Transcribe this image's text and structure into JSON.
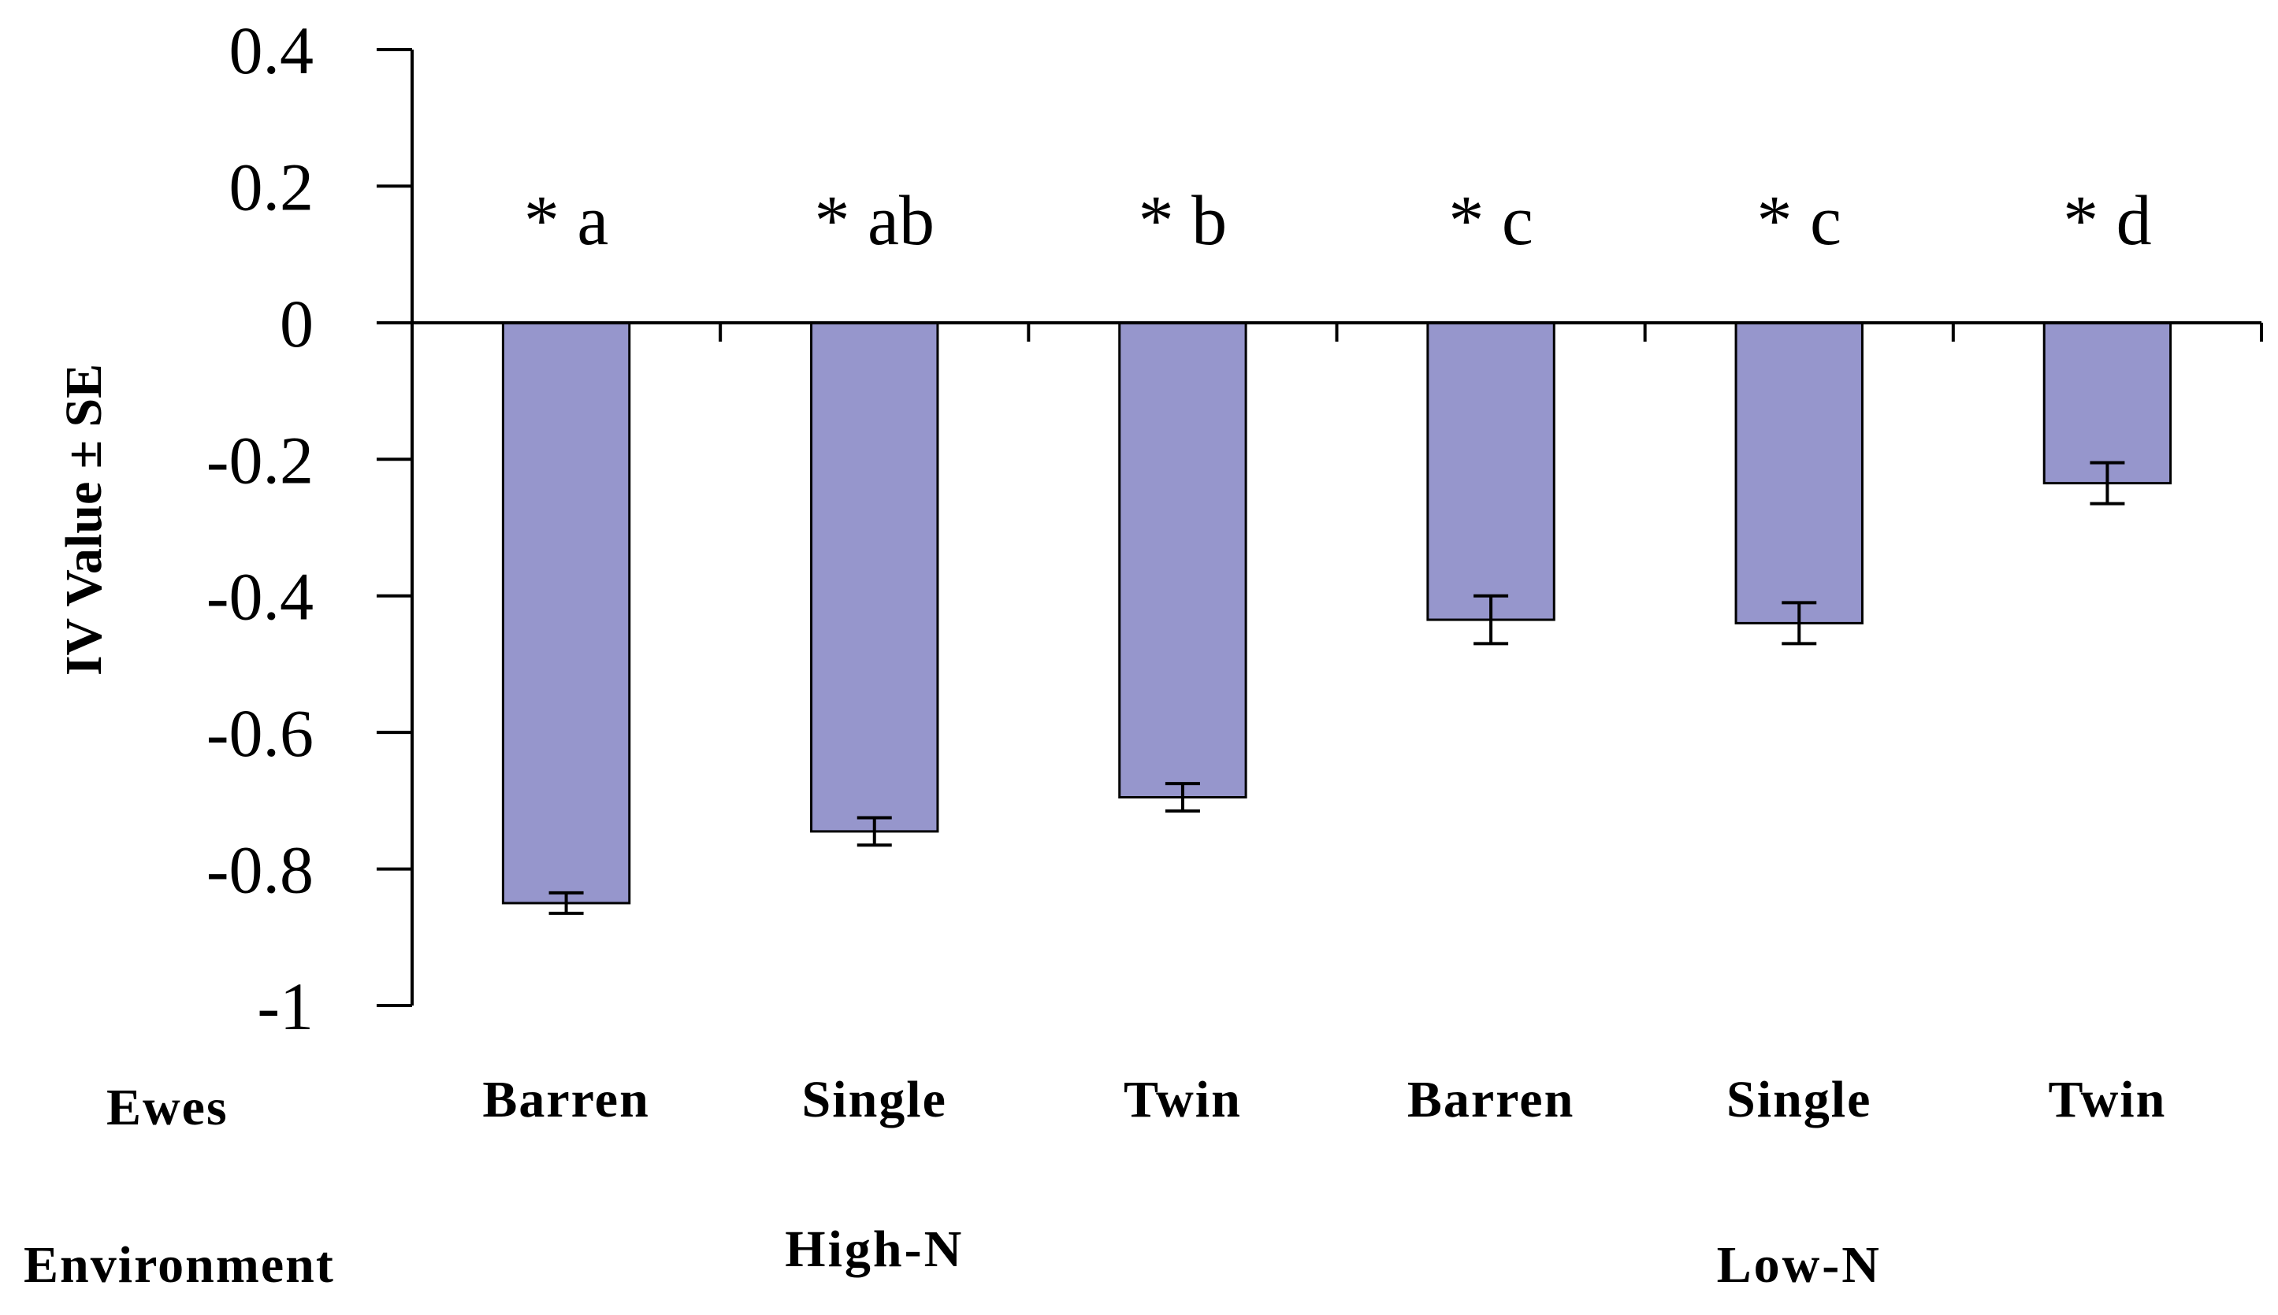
{
  "chart_data": {
    "type": "bar",
    "title": "",
    "xlabel": "",
    "ylabel": "IV Value ± SE",
    "ylim": [
      -1,
      0.4
    ],
    "yticks": [
      {
        "value": 0.4,
        "label": "0.4"
      },
      {
        "value": 0.2,
        "label": "0.2"
      },
      {
        "value": 0,
        "label": "0"
      },
      {
        "value": -0.2,
        "label": "-0.2"
      },
      {
        "value": -0.4,
        "label": "-0.4"
      },
      {
        "value": -0.6,
        "label": "-0.6"
      },
      {
        "value": -0.8,
        "label": "-0.8"
      },
      {
        "value": -1,
        "label": "-1"
      }
    ],
    "grid": false,
    "legend": "none",
    "row_labels": {
      "ewes": "Ewes",
      "environment": "Environment"
    },
    "categories": [
      "Barren",
      "Single",
      "Twin",
      "Barren",
      "Single",
      "Twin"
    ],
    "groups": [
      {
        "label": "High-N",
        "categories": [
          0,
          1,
          2
        ]
      },
      {
        "label": "Low-N",
        "categories": [
          3,
          4,
          5
        ]
      }
    ],
    "values": [
      -0.85,
      -0.745,
      -0.695,
      -0.435,
      -0.44,
      -0.235
    ],
    "errors": [
      0.015,
      0.02,
      0.02,
      0.035,
      0.03,
      0.03
    ],
    "annotations": [
      "* a",
      "* ab",
      "* b",
      "* c",
      "* c",
      "* d"
    ],
    "bar_color": "#9696cc",
    "axis_color": "#000000"
  }
}
